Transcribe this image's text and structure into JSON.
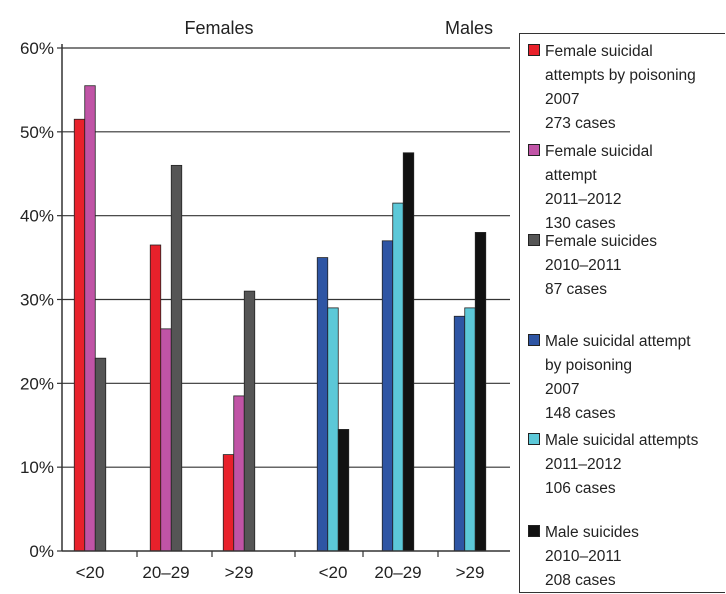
{
  "chart_data": {
    "type": "bar",
    "groups": [
      {
        "title": "Females",
        "categories": [
          "<20",
          "20–29",
          ">29"
        ]
      },
      {
        "title": "Males",
        "categories": [
          "<20",
          "20–29",
          ">29"
        ]
      }
    ],
    "yticks": [
      "0%",
      "10%",
      "20%",
      "30%",
      "40%",
      "50%",
      "60%"
    ],
    "ylim": [
      0,
      60
    ],
    "grid": true,
    "legend_position": "right",
    "series": [
      {
        "name": "Female suicidal attempts by poisoning 2007 273 cases",
        "group": "Females",
        "color": "#e8212b",
        "values": [
          51.5,
          36.5,
          11.5
        ]
      },
      {
        "name": "Female suicidal attempt 2011–2012 130 cases",
        "group": "Females",
        "color": "#c054a6",
        "values": [
          55.5,
          26.5,
          18.5
        ]
      },
      {
        "name": "Female suicides 2010–2011 87 cases",
        "group": "Females",
        "color": "#555555",
        "values": [
          23,
          46,
          31
        ]
      },
      {
        "name": "Male suicidal attempt by poisoning 2007 148 cases",
        "group": "Males",
        "color": "#2e55a4",
        "values": [
          35,
          37,
          28
        ]
      },
      {
        "name": "Male suicidal attempts 2011–2012 106 cases",
        "group": "Males",
        "color": "#5cc8d8",
        "values": [
          29,
          41.5,
          29
        ]
      },
      {
        "name": "Male suicides 2010–2011 208 cases",
        "group": "Males",
        "color": "#111111",
        "values": [
          14.5,
          47.5,
          38
        ]
      }
    ],
    "legend": [
      {
        "color": "#e8212b",
        "lines": [
          "Female suicidal",
          "attempts by poisoning",
          "2007",
          "273 cases"
        ]
      },
      {
        "color": "#c054a6",
        "lines": [
          "Female suicidal",
          "attempt",
          "2011–2012",
          "130 cases"
        ]
      },
      {
        "color": "#555555",
        "lines": [
          "Female suicides",
          "2010–2011",
          "87 cases"
        ]
      },
      {
        "color": "#2e55a4",
        "lines": [
          "Male suicidal attempt",
          "by poisoning",
          "2007",
          "148 cases"
        ]
      },
      {
        "color": "#5cc8d8",
        "lines": [
          "Male suicidal attempts",
          "2011–2012",
          "106 cases"
        ]
      },
      {
        "color": "#111111",
        "lines": [
          "Male suicides",
          "2010–2011",
          "208 cases"
        ]
      }
    ]
  }
}
